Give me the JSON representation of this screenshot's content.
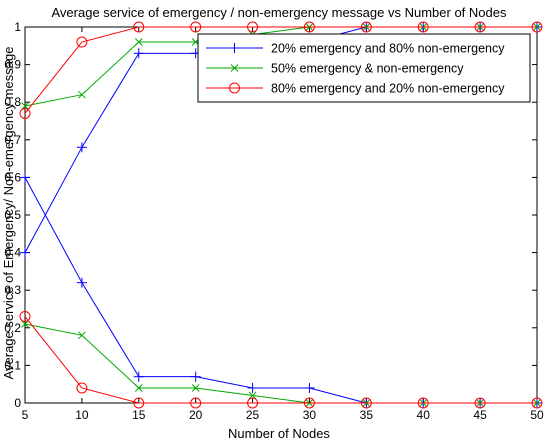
{
  "chart_data": {
    "type": "line",
    "title": "Average service of emergency / non-emergency message vs Number of Nodes",
    "xlabel": "Number of Nodes",
    "ylabel": "Average service of Emergency/ Non-emergency message",
    "xlim": [
      5,
      50
    ],
    "ylim": [
      0,
      1
    ],
    "xticks": [
      5,
      10,
      15,
      20,
      25,
      30,
      35,
      40,
      45,
      50
    ],
    "yticks": [
      0,
      0.1,
      0.2,
      0.3,
      0.4,
      0.5,
      0.6,
      0.7,
      0.8,
      0.9,
      1
    ],
    "grid": false,
    "legend_position": "top-right",
    "x": [
      5,
      10,
      15,
      20,
      25,
      30,
      35,
      40,
      45,
      50
    ],
    "series": [
      {
        "name": "20% emergency and 80% non-emergency",
        "group": "emergency",
        "color": "#0000ff",
        "marker": "plus",
        "values": [
          0.4,
          0.68,
          0.93,
          0.93,
          0.96,
          0.96,
          1.0,
          1.0,
          1.0,
          1.0
        ]
      },
      {
        "name": "50% emergency & non-emergency",
        "group": "emergency",
        "color": "#00aa00",
        "marker": "x",
        "values": [
          0.79,
          0.82,
          0.96,
          0.96,
          0.98,
          1.0,
          1.0,
          1.0,
          1.0,
          1.0
        ]
      },
      {
        "name": "80% emergency and 20% non-emergency",
        "group": "emergency",
        "color": "#ff0000",
        "marker": "circle",
        "values": [
          0.77,
          0.96,
          1.0,
          1.0,
          1.0,
          1.0,
          1.0,
          1.0,
          1.0,
          1.0
        ]
      },
      {
        "name": "",
        "group": "non-emergency",
        "color": "#0000ff",
        "marker": "plus",
        "values": [
          0.6,
          0.32,
          0.07,
          0.07,
          0.04,
          0.04,
          0.0,
          0.0,
          0.0,
          0.0
        ]
      },
      {
        "name": "",
        "group": "non-emergency",
        "color": "#00aa00",
        "marker": "x",
        "values": [
          0.21,
          0.18,
          0.04,
          0.04,
          0.02,
          0.0,
          0.0,
          0.0,
          0.0,
          0.0
        ]
      },
      {
        "name": "",
        "group": "non-emergency",
        "color": "#ff0000",
        "marker": "circle",
        "values": [
          0.23,
          0.04,
          0.0,
          0.0,
          0.0,
          0.0,
          0.0,
          0.0,
          0.0,
          0.0
        ]
      }
    ]
  }
}
